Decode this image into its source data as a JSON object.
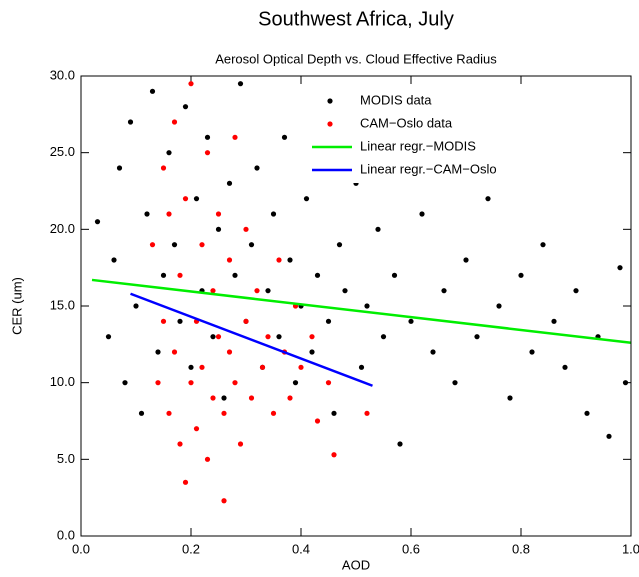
{
  "chart_data": {
    "type": "scatter",
    "title": "Southwest Africa, July",
    "subtitle": "Aerosol Optical Depth vs. Cloud Effective Radius",
    "x_label": "AOD",
    "y_label": "CER (um)",
    "xlim": [
      0,
      1
    ],
    "ylim": [
      0,
      30
    ],
    "xticks": [
      {
        "value": 0,
        "label": "0.0"
      },
      0.2,
      0.4,
      0.6,
      0.8,
      {
        "value": 1,
        "label": "1.0"
      }
    ],
    "yticks": [
      {
        "value": 0,
        "label": "0.0"
      },
      {
        "value": 5,
        "label": "5.0"
      },
      {
        "value": 10,
        "label": "10.0"
      },
      {
        "value": 15,
        "label": "15.0"
      },
      {
        "value": 20,
        "label": "20.0"
      },
      {
        "value": 25,
        "label": "25.0"
      },
      {
        "value": 30,
        "label": "30.0"
      }
    ],
    "series": [
      {
        "name": "MODIS data",
        "color": "#000000",
        "mode": "markers",
        "x": [
          0.03,
          0.05,
          0.06,
          0.07,
          0.08,
          0.09,
          0.1,
          0.11,
          0.12,
          0.13,
          0.14,
          0.15,
          0.16,
          0.17,
          0.18,
          0.19,
          0.2,
          0.21,
          0.22,
          0.23,
          0.24,
          0.25,
          0.26,
          0.27,
          0.28,
          0.29,
          0.3,
          0.31,
          0.32,
          0.33,
          0.34,
          0.35,
          0.36,
          0.37,
          0.38,
          0.39,
          0.4,
          0.41,
          0.42,
          0.43,
          0.44,
          0.45,
          0.46,
          0.47,
          0.48,
          0.5,
          0.51,
          0.52,
          0.54,
          0.55,
          0.57,
          0.58,
          0.6,
          0.62,
          0.64,
          0.66,
          0.68,
          0.7,
          0.72,
          0.74,
          0.76,
          0.78,
          0.8,
          0.82,
          0.84,
          0.86,
          0.88,
          0.9,
          0.92,
          0.94,
          0.96,
          0.98,
          0.99
        ],
        "values": [
          20.5,
          13,
          18,
          24,
          10,
          27,
          15,
          8,
          21,
          29,
          12,
          17,
          25,
          19,
          14,
          28,
          11,
          22,
          16,
          26,
          13,
          20,
          9,
          23,
          17,
          29.5,
          14,
          19,
          24,
          11,
          16,
          21,
          13,
          26,
          18,
          10,
          15,
          22,
          12,
          17,
          25,
          14,
          8,
          19,
          16,
          23,
          11,
          15,
          20,
          13,
          17,
          6,
          14,
          21,
          12,
          16,
          10,
          18,
          13,
          22,
          15,
          9,
          17,
          12,
          19,
          14,
          11,
          16,
          8,
          13,
          6.5,
          17.5,
          10
        ]
      },
      {
        "name": "CAM−Oslo data",
        "color": "#ff0000",
        "mode": "markers",
        "x": [
          0.13,
          0.14,
          0.15,
          0.15,
          0.16,
          0.16,
          0.17,
          0.17,
          0.18,
          0.18,
          0.19,
          0.19,
          0.2,
          0.2,
          0.21,
          0.21,
          0.22,
          0.22,
          0.23,
          0.23,
          0.24,
          0.24,
          0.25,
          0.25,
          0.26,
          0.26,
          0.27,
          0.27,
          0.28,
          0.28,
          0.29,
          0.3,
          0.3,
          0.31,
          0.32,
          0.33,
          0.34,
          0.35,
          0.36,
          0.37,
          0.38,
          0.39,
          0.4,
          0.42,
          0.43,
          0.45,
          0.46,
          0.52
        ],
        "values": [
          19,
          10,
          24,
          14,
          8,
          21,
          12,
          27,
          6,
          17,
          3.5,
          22,
          10,
          29.5,
          14,
          7,
          19,
          11,
          25,
          5,
          9,
          16,
          13,
          21,
          2.3,
          8,
          12,
          18,
          10,
          26,
          6,
          14,
          20,
          9,
          16,
          11,
          13,
          8,
          18,
          12,
          9,
          15,
          11,
          13,
          7.5,
          10,
          5.3,
          8
        ]
      },
      {
        "name": "Linear regr.−MODIS",
        "color": "#00ee00",
        "mode": "line",
        "x": [
          0.02,
          1
        ],
        "values": [
          16.7,
          12.6
        ]
      },
      {
        "name": "Linear regr.−CAM−Oslo",
        "color": "#0000ff",
        "mode": "line",
        "x": [
          0.09,
          0.53
        ],
        "values": [
          15.8,
          9.8
        ]
      }
    ],
    "legend": "upper right"
  }
}
